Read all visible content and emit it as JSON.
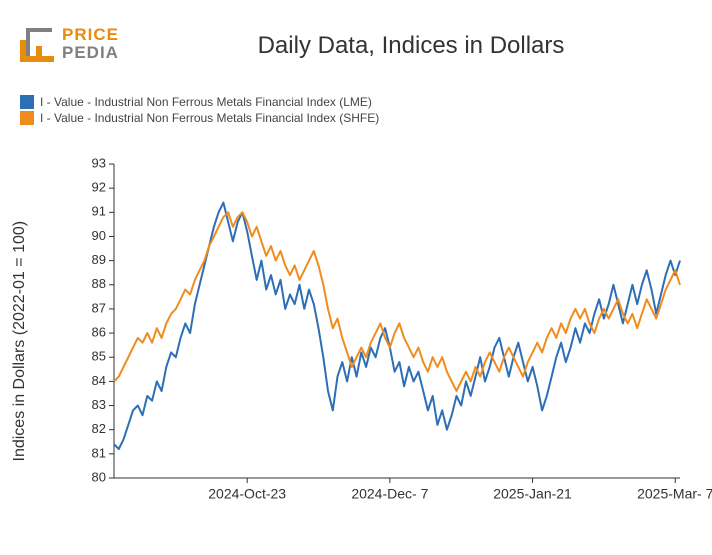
{
  "logo": {
    "text_top": "PRICE",
    "text_bottom": "PEDIA",
    "accent_color": "#e78c0f",
    "gray_color": "#808080"
  },
  "title": "Daily Data, Indices in Dollars",
  "title_fontsize": 24,
  "y_axis_label": "Indices in Dollars (2022-01 = 100)",
  "legend": [
    {
      "color": "#2d6fb5",
      "label": "I - Value - Industrial Non Ferrous Metals Financial Index (LME)"
    },
    {
      "color": "#f08c1e",
      "label": "I - Value - Industrial Non Ferrous Metals Financial Index (SHFE)"
    }
  ],
  "chart": {
    "type": "line",
    "background_color": "#ffffff",
    "axis_color": "#333333",
    "tick_fontsize_y": 13,
    "tick_fontsize_x": 14,
    "line_width": 2,
    "ylim": [
      80,
      93
    ],
    "ytick_step": 1,
    "x_count": 120,
    "x_ticks": [
      {
        "idx": 28,
        "label": "2024-Oct-23"
      },
      {
        "idx": 58,
        "label": "2024-Dec- 7"
      },
      {
        "idx": 88,
        "label": "2025-Jan-21"
      },
      {
        "idx": 118,
        "label": "2025-Mar- 7"
      }
    ],
    "series": [
      {
        "name": "LME",
        "color": "#2d6fb5",
        "values": [
          81.4,
          81.2,
          81.6,
          82.2,
          82.8,
          83.0,
          82.6,
          83.4,
          83.2,
          84.0,
          83.6,
          84.6,
          85.2,
          85.0,
          85.8,
          86.4,
          86.0,
          87.2,
          88.0,
          88.8,
          89.6,
          90.4,
          91.0,
          91.4,
          90.6,
          89.8,
          90.6,
          91.0,
          90.2,
          89.2,
          88.2,
          89.0,
          87.8,
          88.4,
          87.6,
          88.2,
          87.0,
          87.6,
          87.2,
          88.0,
          87.0,
          87.8,
          87.2,
          86.2,
          85.0,
          83.6,
          82.8,
          84.2,
          84.8,
          84.0,
          85.0,
          84.2,
          85.2,
          84.6,
          85.4,
          85.0,
          85.8,
          86.2,
          85.4,
          84.4,
          84.8,
          83.8,
          84.6,
          84.0,
          84.4,
          83.6,
          82.8,
          83.4,
          82.2,
          82.8,
          82.0,
          82.6,
          83.4,
          83.0,
          84.0,
          83.4,
          84.2,
          85.0,
          84.0,
          84.6,
          85.4,
          85.8,
          85.0,
          84.2,
          85.0,
          85.6,
          84.8,
          84.0,
          84.6,
          83.8,
          82.8,
          83.4,
          84.2,
          85.0,
          85.6,
          84.8,
          85.4,
          86.2,
          85.6,
          86.4,
          86.0,
          86.8,
          87.4,
          86.6,
          87.2,
          88.0,
          87.2,
          86.4,
          87.2,
          88.0,
          87.2,
          88.0,
          88.6,
          87.8,
          86.8,
          87.6,
          88.4,
          89.0,
          88.4,
          89.0
        ]
      },
      {
        "name": "SHFE",
        "color": "#f08c1e",
        "values": [
          84.0,
          84.2,
          84.6,
          85.0,
          85.4,
          85.8,
          85.6,
          86.0,
          85.6,
          86.2,
          85.8,
          86.4,
          86.8,
          87.0,
          87.4,
          87.8,
          87.6,
          88.2,
          88.6,
          89.0,
          89.6,
          90.0,
          90.4,
          90.8,
          91.0,
          90.4,
          90.8,
          91.0,
          90.6,
          90.0,
          90.4,
          89.8,
          89.2,
          89.6,
          89.0,
          89.4,
          88.8,
          88.4,
          88.8,
          88.2,
          88.6,
          89.0,
          89.4,
          88.8,
          88.0,
          87.0,
          86.2,
          86.6,
          85.8,
          85.2,
          84.6,
          85.0,
          85.4,
          85.0,
          85.6,
          86.0,
          86.4,
          85.8,
          85.4,
          86.0,
          86.4,
          85.8,
          85.4,
          85.0,
          85.4,
          84.8,
          84.4,
          85.0,
          84.6,
          85.0,
          84.4,
          84.0,
          83.6,
          84.0,
          84.4,
          84.0,
          84.6,
          84.2,
          84.8,
          85.2,
          84.8,
          84.4,
          85.0,
          85.4,
          85.0,
          84.6,
          84.2,
          84.8,
          85.2,
          85.6,
          85.2,
          85.8,
          86.2,
          85.8,
          86.4,
          86.0,
          86.6,
          87.0,
          86.6,
          87.0,
          86.4,
          86.0,
          86.6,
          87.0,
          86.6,
          87.0,
          87.4,
          86.8,
          86.4,
          86.8,
          86.2,
          86.8,
          87.4,
          87.0,
          86.6,
          87.2,
          87.8,
          88.2,
          88.6,
          88.0
        ]
      }
    ]
  }
}
